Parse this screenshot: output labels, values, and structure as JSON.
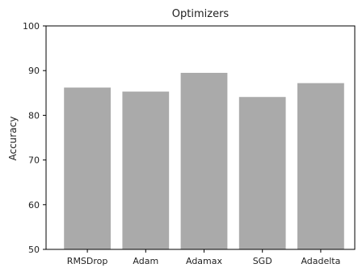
{
  "chart_data": {
    "type": "bar",
    "title": "Optimizers",
    "xlabel": "",
    "ylabel": "Accuracy",
    "categories": [
      "RMSDrop",
      "Adam",
      "Adamax",
      "SGD",
      "Adadelta"
    ],
    "values": [
      86.2,
      85.3,
      89.5,
      84.1,
      87.2
    ],
    "ylim": [
      50,
      100
    ],
    "yticks": [
      50,
      60,
      70,
      80,
      90,
      100
    ],
    "grid": false,
    "bar_color": "#aaaaaa"
  }
}
